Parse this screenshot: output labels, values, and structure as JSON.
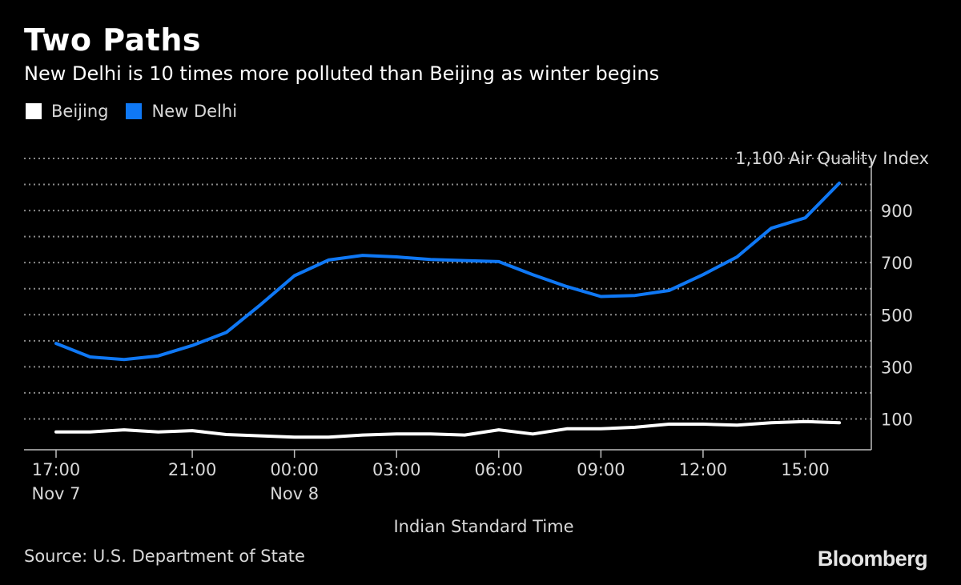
{
  "header": {
    "title": "Two Paths",
    "subtitle": "New Delhi is 10 times more polluted than Beijing as winter begins"
  },
  "footer": {
    "source": "Source: U.S. Department of State",
    "brand": "Bloomberg"
  },
  "colors": {
    "background": "#000000",
    "beijing": "#ffffff",
    "new_delhi": "#0f78f5",
    "grid": "#8a8a8a",
    "text": "#d8d8d8"
  },
  "chart_data": {
    "type": "line",
    "title": "Two Paths",
    "subtitle": "New Delhi is 10 times more polluted than Beijing as winter begins",
    "xlabel": "Indian Standard Time",
    "ylabel": "Air Quality Index",
    "top_tick_label": "1,100 Air Quality Index",
    "y_ticks": [
      100,
      300,
      500,
      700,
      900
    ],
    "ylim": [
      0,
      1100
    ],
    "grid": true,
    "legend_position": "top-left",
    "x_ticks": [
      {
        "hour": 0,
        "line1": "17:00",
        "line2": "Nov 7"
      },
      {
        "hour": 4,
        "line1": "21:00",
        "line2": ""
      },
      {
        "hour": 7,
        "line1": "00:00",
        "line2": "Nov 8"
      },
      {
        "hour": 10,
        "line1": "03:00",
        "line2": ""
      },
      {
        "hour": 13,
        "line1": "06:00",
        "line2": ""
      },
      {
        "hour": 16,
        "line1": "09:00",
        "line2": ""
      },
      {
        "hour": 19,
        "line1": "12:00",
        "line2": ""
      },
      {
        "hour": 22,
        "line1": "15:00",
        "line2": ""
      }
    ],
    "x": [
      "17:00",
      "18:00",
      "19:00",
      "20:00",
      "21:00",
      "22:00",
      "23:00",
      "00:00",
      "01:00",
      "02:00",
      "03:00",
      "04:00",
      "05:00",
      "06:00",
      "07:00",
      "08:00",
      "09:00",
      "10:00",
      "11:00",
      "12:00",
      "13:00",
      "14:00",
      "15:00",
      "16:00"
    ],
    "series": [
      {
        "name": "Beijing",
        "color": "#ffffff",
        "values": [
          50,
          50,
          58,
          50,
          55,
          40,
          35,
          30,
          30,
          38,
          42,
          42,
          38,
          58,
          42,
          62,
          62,
          68,
          80,
          80,
          76,
          85,
          90,
          85
        ]
      },
      {
        "name": "New Delhi",
        "color": "#0f78f5",
        "values": [
          390,
          338,
          328,
          342,
          382,
          432,
          538,
          650,
          710,
          728,
          722,
          712,
          708,
          704,
          654,
          608,
          570,
          574,
          593,
          654,
          722,
          832,
          872,
          1005
        ]
      }
    ]
  }
}
